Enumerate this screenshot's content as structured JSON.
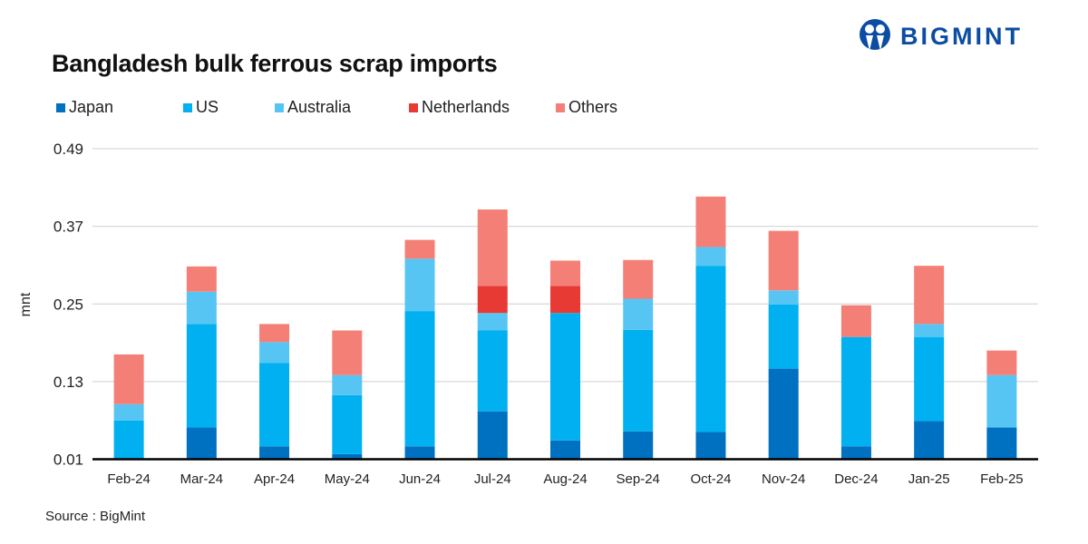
{
  "brand": {
    "logo_text": "BIGMINT"
  },
  "source": "Source : BigMint",
  "colors": {
    "Japan": "#0070C0",
    "US": "#00B0F0",
    "Australia": "#56C5F3",
    "Netherlands": "#E83A34",
    "Others": "#F47F76"
  },
  "chart_data": {
    "type": "bar",
    "stacked": true,
    "title": "Bangladesh bulk ferrous scrap imports",
    "xlabel": "",
    "ylabel": "mnt",
    "ylim": [
      0.01,
      0.49
    ],
    "yticks": [
      "0.01",
      "0.13",
      "0.25",
      "0.37",
      "0.49"
    ],
    "grid": true,
    "legend": "top-left",
    "categories": [
      "Feb-24",
      "Mar-24",
      "Apr-24",
      "May-24",
      "Jun-24",
      "Jul-24",
      "Aug-24",
      "Sep-24",
      "Oct-24",
      "Nov-24",
      "Dec-24",
      "Jan-25",
      "Feb-25"
    ],
    "series": [
      {
        "name": "Japan",
        "values": [
          0,
          0.049,
          0.02,
          0.008,
          0.02,
          0.074,
          0.029,
          0.043,
          0.042,
          0.14,
          0.02,
          0.059,
          0.049
        ]
      },
      {
        "name": "US",
        "values": [
          0.06,
          0.16,
          0.129,
          0.091,
          0.209,
          0.125,
          0.197,
          0.157,
          0.257,
          0.099,
          0.169,
          0.13,
          0
        ]
      },
      {
        "name": "Australia",
        "values": [
          0.025,
          0.05,
          0.032,
          0.031,
          0.081,
          0.027,
          0,
          0.048,
          0.029,
          0.022,
          0,
          0.02,
          0.081
        ]
      },
      {
        "name": "Netherlands",
        "values": [
          0,
          0,
          0,
          0,
          0,
          0.042,
          0.042,
          0,
          0,
          0,
          0,
          0,
          0
        ]
      },
      {
        "name": "Others",
        "values": [
          0.077,
          0.039,
          0.028,
          0.069,
          0.029,
          0.118,
          0.039,
          0.06,
          0.078,
          0.092,
          0.049,
          0.09,
          0.038
        ]
      }
    ]
  }
}
